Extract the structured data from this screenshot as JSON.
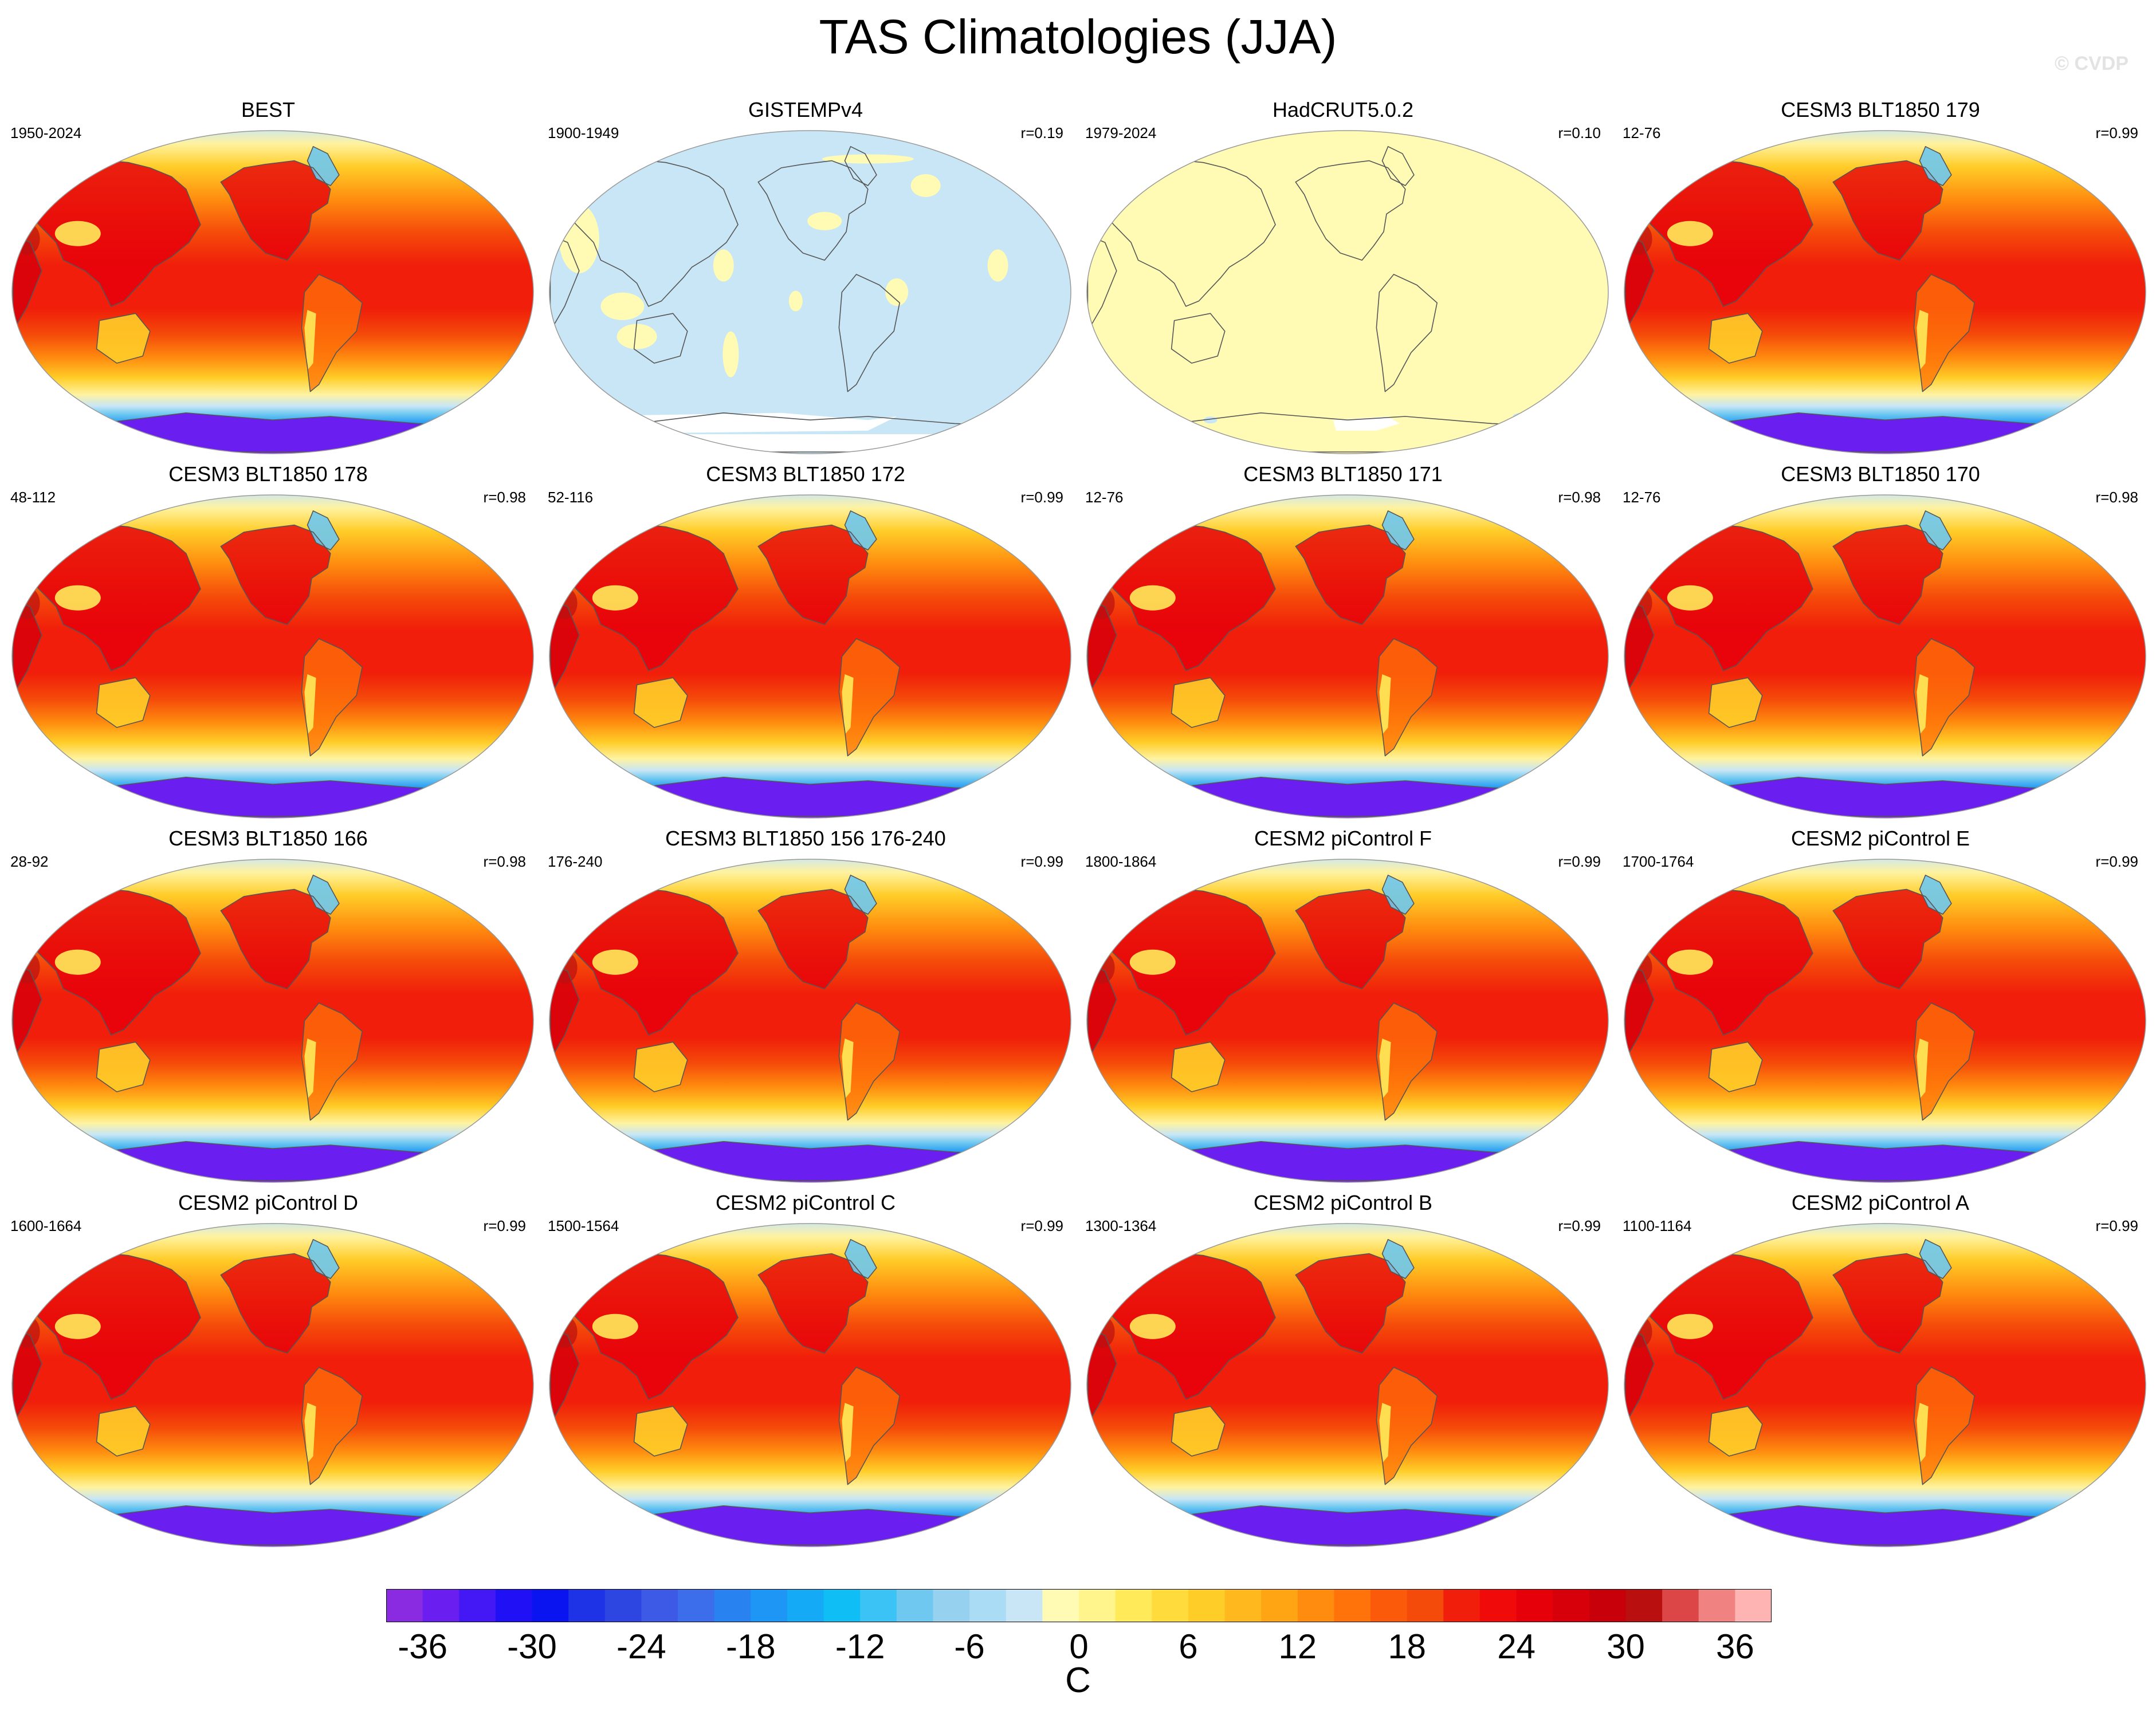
{
  "title": "TAS Climatologies (JJA)",
  "watermark": "© CVDP",
  "colors": {
    "ocean_light_blue": "#c8e6f5",
    "pale_yellow": "#fffbb5",
    "cold_purple": "#8a2be2",
    "warm_red": "#f01e0a"
  },
  "panels": [
    {
      "title": "BEST",
      "years": "1950-2024",
      "r": "",
      "style": "full"
    },
    {
      "title": "GISTEMPv4",
      "years": "1900-1949",
      "r": "r=0.19",
      "style": "gis"
    },
    {
      "title": "HadCRUT5.0.2",
      "years": "1979-2024",
      "r": "r=0.10",
      "style": "had"
    },
    {
      "title": "CESM3 BLT1850 179",
      "years": "12-76",
      "r": "r=0.99",
      "style": "full"
    },
    {
      "title": "CESM3 BLT1850 178",
      "years": "48-112",
      "r": "r=0.98",
      "style": "full"
    },
    {
      "title": "CESM3 BLT1850 172",
      "years": "52-116",
      "r": "r=0.99",
      "style": "full"
    },
    {
      "title": "CESM3 BLT1850 171",
      "years": "12-76",
      "r": "r=0.98",
      "style": "full"
    },
    {
      "title": "CESM3 BLT1850 170",
      "years": "12-76",
      "r": "r=0.98",
      "style": "full"
    },
    {
      "title": "CESM3 BLT1850 166",
      "years": "28-92",
      "r": "r=0.98",
      "style": "full"
    },
    {
      "title": "CESM3 BLT1850 156 176-240",
      "years": "176-240",
      "r": "r=0.99",
      "style": "full"
    },
    {
      "title": "CESM2 piControl F",
      "years": "1800-1864",
      "r": "r=0.99",
      "style": "full"
    },
    {
      "title": "CESM2 piControl E",
      "years": "1700-1764",
      "r": "r=0.99",
      "style": "full"
    },
    {
      "title": "CESM2 piControl D",
      "years": "1600-1664",
      "r": "r=0.99",
      "style": "full"
    },
    {
      "title": "CESM2 piControl C",
      "years": "1500-1564",
      "r": "r=0.99",
      "style": "full"
    },
    {
      "title": "CESM2 piControl B",
      "years": "1300-1364",
      "r": "r=0.99",
      "style": "full"
    },
    {
      "title": "CESM2 piControl A",
      "years": "1100-1164",
      "r": "r=0.99",
      "style": "full"
    }
  ],
  "colorbar": {
    "unit": "C",
    "tick_labels": [
      "-36",
      "-30",
      "-24",
      "-18",
      "-12",
      "-6",
      "0",
      "6",
      "12",
      "18",
      "24",
      "30",
      "36"
    ],
    "tick_values": [
      -36,
      -30,
      -24,
      -18,
      -12,
      -6,
      0,
      6,
      12,
      18,
      24,
      30,
      36
    ],
    "min": -42,
    "max": 42,
    "step": 2,
    "colors": [
      "#8a2be2",
      "#6a1ef0",
      "#4418f5",
      "#2010f5",
      "#0a14f0",
      "#1e32e6",
      "#2d46e1",
      "#3c5ae6",
      "#3c6eeb",
      "#2882f0",
      "#1e96f5",
      "#14aaf5",
      "#0fbef5",
      "#3cc3f5",
      "#6ec8f0",
      "#96d2f0",
      "#aadcf5",
      "#c8e6f5",
      "#fffbb5",
      "#fff58c",
      "#ffeb5a",
      "#ffdc3c",
      "#ffcd28",
      "#ffb91e",
      "#ffa514",
      "#ff8c0f",
      "#ff730a",
      "#fa5a0a",
      "#f54b0a",
      "#f01e0a",
      "#f00a0a",
      "#e6000a",
      "#d7000a",
      "#c8000a",
      "#b90f0f",
      "#dc4646",
      "#f08282",
      "#ffb4b4"
    ]
  }
}
